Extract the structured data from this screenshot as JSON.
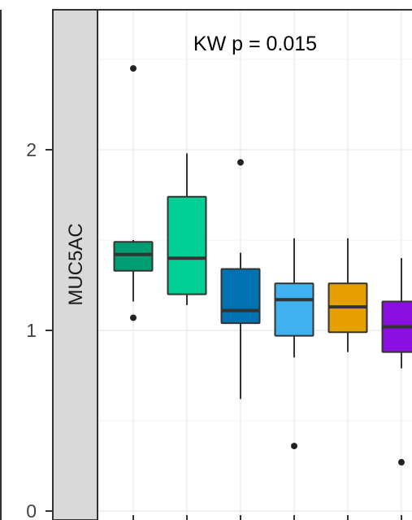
{
  "chart_data": {
    "type": "boxplot",
    "facet_label": "MUC5AC",
    "annotation": "KW p = 0.015",
    "ylim": [
      0,
      2.5
    ],
    "y_ticks": [
      0,
      1,
      2
    ],
    "grid": true,
    "legend": "none",
    "groups": [
      {
        "color": "#009E73",
        "whisker_low": 1.16,
        "q1": 1.33,
        "median": 1.42,
        "q3": 1.49,
        "whisker_high": 1.5,
        "outliers": [
          2.45,
          1.07
        ]
      },
      {
        "color": "#00D095",
        "whisker_low": 1.14,
        "q1": 1.2,
        "median": 1.4,
        "q3": 1.74,
        "whisker_high": 1.98,
        "outliers": []
      },
      {
        "color": "#0072B2",
        "whisker_low": 0.62,
        "q1": 1.04,
        "median": 1.11,
        "q3": 1.34,
        "whisker_high": 1.43,
        "outliers": [
          1.93
        ]
      },
      {
        "color": "#3FB0F0",
        "whisker_low": 0.85,
        "q1": 0.97,
        "median": 1.17,
        "q3": 1.26,
        "whisker_high": 1.51,
        "outliers": [
          0.36
        ]
      },
      {
        "color": "#E69F00",
        "whisker_low": 0.88,
        "q1": 0.99,
        "median": 1.13,
        "q3": 1.26,
        "whisker_high": 1.51,
        "outliers": []
      },
      {
        "color": "#8B0FE0",
        "whisker_low": 0.79,
        "q1": 0.88,
        "median": 1.02,
        "q3": 1.16,
        "whisker_high": 1.4,
        "outliers": [
          0.27
        ]
      }
    ]
  }
}
